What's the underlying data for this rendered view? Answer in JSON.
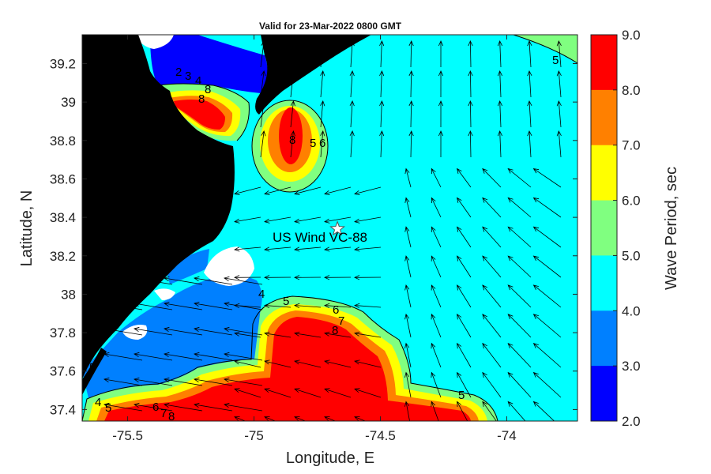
{
  "title": "Valid for 23-Mar-2022 0800 GMT",
  "xlabel": "Longitude, E",
  "ylabel": "Latitude, N",
  "x_ticks": [
    "-75.5",
    "-75",
    "-74.5",
    "-74"
  ],
  "y_ticks": [
    "39.2",
    "39",
    "38.8",
    "38.6",
    "38.4",
    "38.2",
    "38",
    "37.8",
    "37.6",
    "37.4"
  ],
  "station": {
    "label": "US Wind VC-88",
    "lon": -74.67,
    "lat": 38.34
  },
  "colorbar": {
    "label": "Wave Period, sec",
    "ticks": [
      "9.0",
      "8.0",
      "7.0",
      "6.0",
      "5.0",
      "4.0",
      "3.0",
      "2.0"
    ],
    "colors": [
      "#ff0000",
      "#ff8000",
      "#ffff00",
      "#80ff80",
      "#00ffff",
      "#0080ff",
      "#0000ff"
    ]
  },
  "contour_labels": [
    "2",
    "3",
    "4",
    "8",
    "8",
    "8",
    "5",
    "6",
    "5",
    "4",
    "5",
    "6",
    "7",
    "8",
    "5",
    "4",
    "5",
    "6",
    "7",
    "8",
    "5"
  ],
  "colors": {
    "land": "#000000",
    "nodata": "#ffffff",
    "background": "#00ffff",
    "p4": "#0080ff",
    "p3": "#0000ff",
    "p5": "#80ff80",
    "p6": "#ffff00",
    "p7": "#ff8000",
    "p8": "#ff0000"
  }
}
